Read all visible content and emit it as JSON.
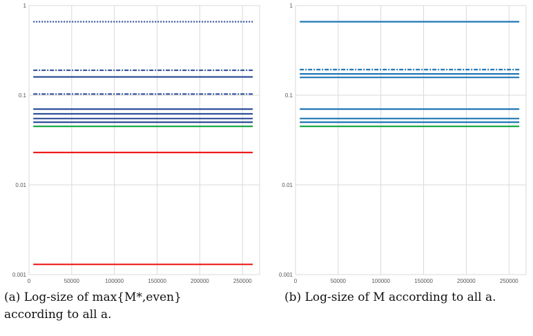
{
  "chart_data": [
    {
      "type": "line",
      "id": "a",
      "y_scale": "log",
      "xlim": [
        0,
        270000
      ],
      "ylim": [
        0.001,
        1
      ],
      "x_ticks": [
        "0",
        "50000",
        "100000",
        "150000",
        "200000",
        "250000"
      ],
      "x_tick_values": [
        0,
        50000,
        100000,
        150000,
        200000,
        250000
      ],
      "y_ticks": [
        "0.001",
        "0.01",
        "0.1",
        "1"
      ],
      "y_tick_values": [
        0.001,
        0.01,
        0.1,
        1
      ],
      "grid": true,
      "series": [
        {
          "x": [
            5000,
            262000
          ],
          "y": [
            0.66,
            0.66
          ],
          "color": "#2f4f99",
          "style": "dotted"
        },
        {
          "x": [
            5000,
            262000
          ],
          "y": [
            0.19,
            0.19
          ],
          "color": "#2f4f99",
          "style": "dashdot"
        },
        {
          "x": [
            5000,
            262000
          ],
          "y": [
            0.16,
            0.16
          ],
          "color": "#2f4f99",
          "style": "solid"
        },
        {
          "x": [
            5000,
            262000
          ],
          "y": [
            0.103,
            0.103
          ],
          "color": "#2f4f99",
          "style": "dashdot"
        },
        {
          "x": [
            5000,
            262000
          ],
          "y": [
            0.07,
            0.07
          ],
          "color": "#2f4f99",
          "style": "solid"
        },
        {
          "x": [
            5000,
            262000
          ],
          "y": [
            0.062,
            0.062
          ],
          "color": "#2f4f99",
          "style": "solid"
        },
        {
          "x": [
            5000,
            262000
          ],
          "y": [
            0.055,
            0.055
          ],
          "color": "#2f4f99",
          "style": "solid"
        },
        {
          "x": [
            5000,
            262000
          ],
          "y": [
            0.05,
            0.05
          ],
          "color": "#2f4f99",
          "style": "solid"
        },
        {
          "x": [
            5000,
            262000
          ],
          "y": [
            0.045,
            0.045
          ],
          "color": "#18a845",
          "style": "solid"
        },
        {
          "x": [
            5000,
            262000
          ],
          "y": [
            0.023,
            0.023
          ],
          "color": "#ee1c1c",
          "style": "solid"
        },
        {
          "x": [
            5000,
            262000
          ],
          "y": [
            0.0013,
            0.0013
          ],
          "color": "#ee1c1c",
          "style": "solid"
        }
      ]
    },
    {
      "type": "line",
      "id": "b",
      "y_scale": "log",
      "xlim": [
        0,
        270000
      ],
      "ylim": [
        0.001,
        1
      ],
      "x_ticks": [
        "0",
        "50000",
        "100000",
        "150000",
        "200000",
        "250000"
      ],
      "x_tick_values": [
        0,
        50000,
        100000,
        150000,
        200000,
        250000
      ],
      "y_ticks": [
        "0.001",
        "0.01",
        "0.1",
        "1"
      ],
      "y_tick_values": [
        0.001,
        0.01,
        0.1,
        1
      ],
      "grid": true,
      "series": [
        {
          "x": [
            5000,
            262000
          ],
          "y": [
            0.66,
            0.66
          ],
          "color": "#1f77b4",
          "style": "solid"
        },
        {
          "x": [
            5000,
            262000
          ],
          "y": [
            0.193,
            0.193
          ],
          "color": "#1f77b4",
          "style": "dashdot"
        },
        {
          "x": [
            5000,
            262000
          ],
          "y": [
            0.173,
            0.173
          ],
          "color": "#1f77b4",
          "style": "solid"
        },
        {
          "x": [
            5000,
            262000
          ],
          "y": [
            0.158,
            0.158
          ],
          "color": "#1f77b4",
          "style": "solid"
        },
        {
          "x": [
            5000,
            262000
          ],
          "y": [
            0.07,
            0.07
          ],
          "color": "#1f77b4",
          "style": "solid"
        },
        {
          "x": [
            5000,
            262000
          ],
          "y": [
            0.055,
            0.055
          ],
          "color": "#1f77b4",
          "style": "solid"
        },
        {
          "x": [
            5000,
            262000
          ],
          "y": [
            0.05,
            0.05
          ],
          "color": "#1f77b4",
          "style": "solid"
        },
        {
          "x": [
            5000,
            262000
          ],
          "y": [
            0.045,
            0.045
          ],
          "color": "#18a845",
          "style": "solid"
        }
      ]
    }
  ],
  "captions": {
    "a": "(a) Log-size of max{M*,even} according to all a.",
    "b": "(b) Log-size of M according to all a."
  }
}
